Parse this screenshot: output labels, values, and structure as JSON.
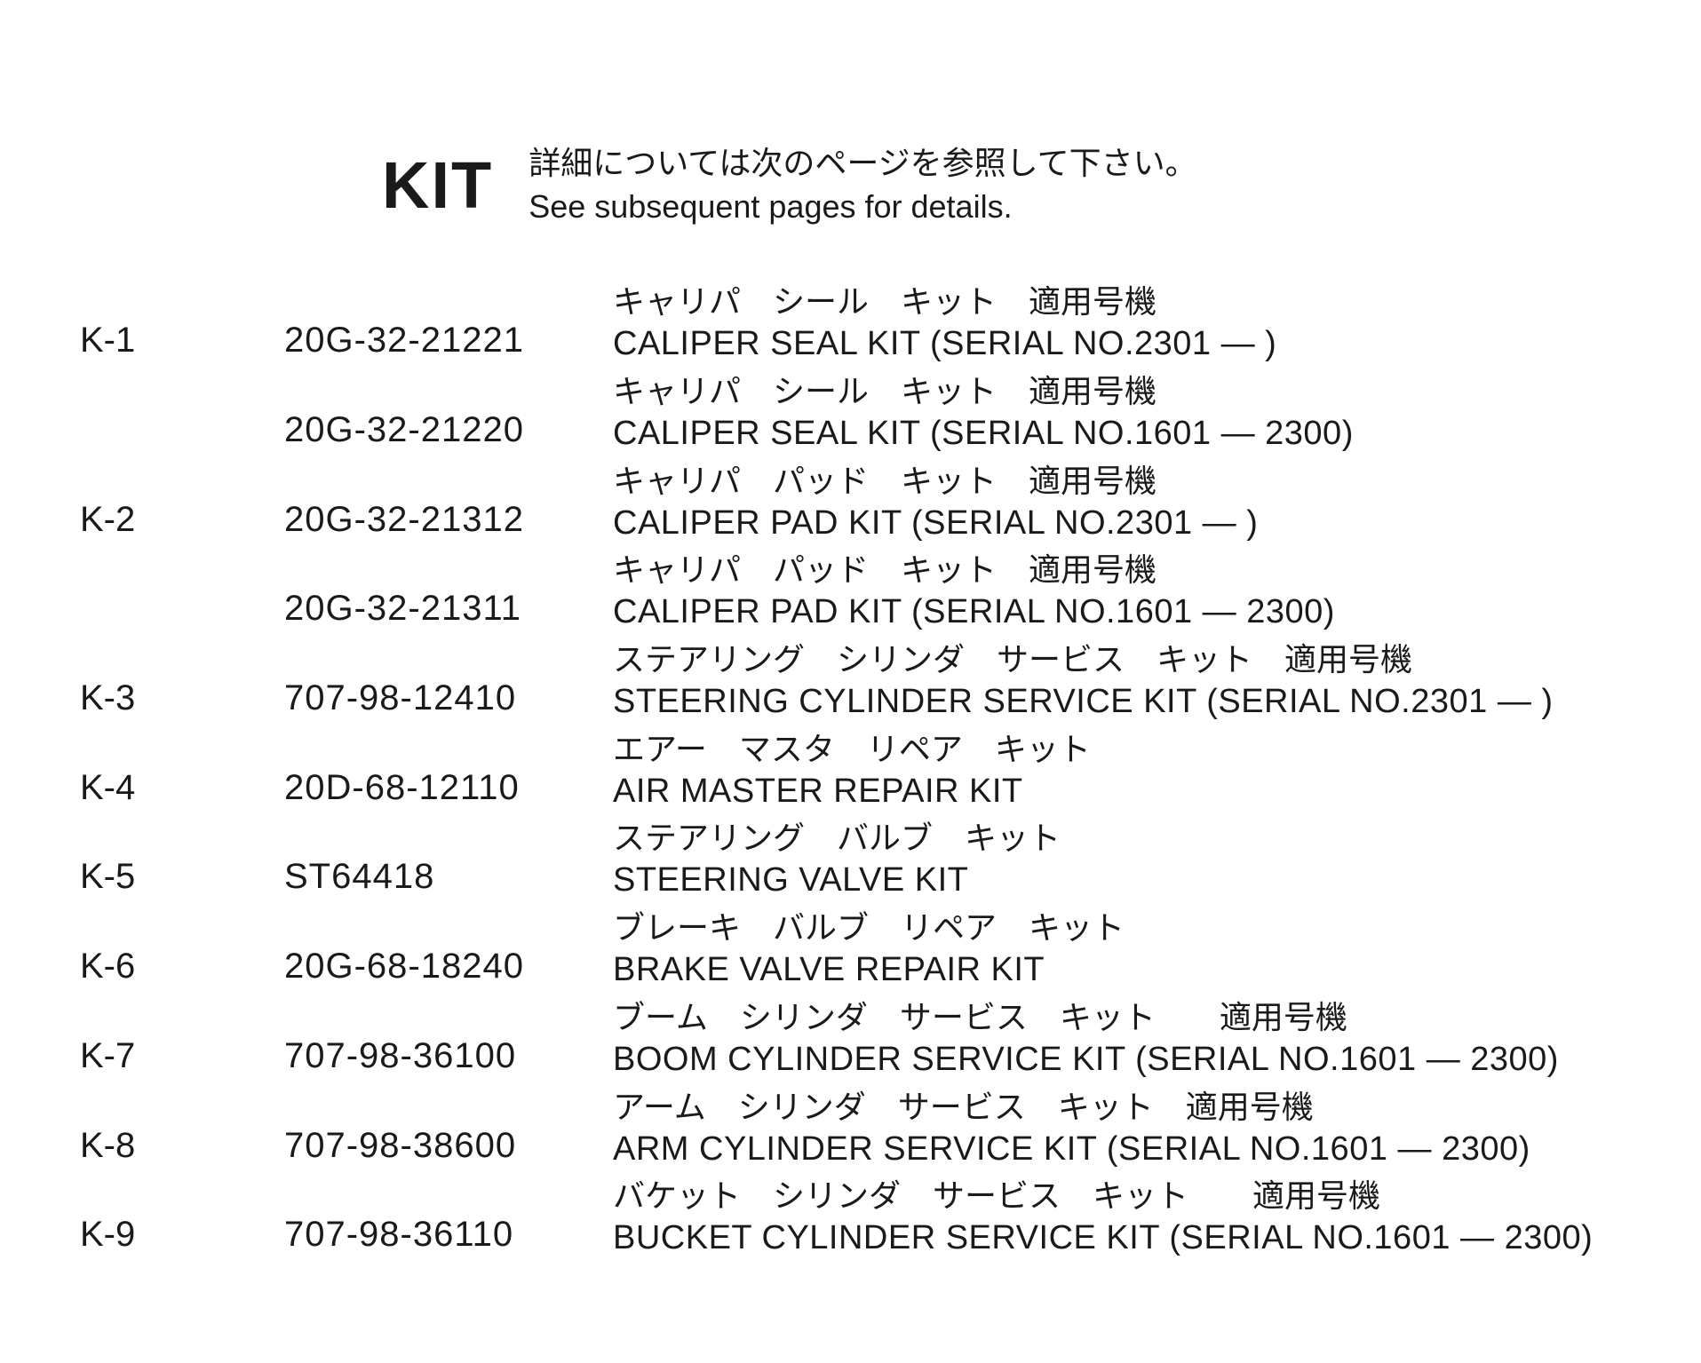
{
  "header": {
    "title": "KIT",
    "sub_jp": "詳細については次のページを参照して下さい。",
    "sub_en": "See subsequent pages for details."
  },
  "rows": [
    {
      "ref": "K-1",
      "part": "20G-32-21221",
      "jp": "キャリパ　シール　キット　適用号機",
      "en": "CALIPER SEAL KIT (SERIAL NO.2301 — )"
    },
    {
      "ref": "",
      "part": "20G-32-21220",
      "jp": "キャリパ　シール　キット　適用号機",
      "en": "CALIPER SEAL KIT (SERIAL NO.1601 — 2300)"
    },
    {
      "ref": "K-2",
      "part": "20G-32-21312",
      "jp": "キャリパ　パッド　キット　適用号機",
      "en": "CALIPER PAD KIT (SERIAL NO.2301 — )"
    },
    {
      "ref": "",
      "part": "20G-32-21311",
      "jp": "キャリパ　パッド　キット　適用号機",
      "en": "CALIPER PAD KIT (SERIAL NO.1601 — 2300)"
    },
    {
      "ref": "K-3",
      "part": "707-98-12410",
      "jp": "ステアリング　シリンダ　サービス　キット　適用号機",
      "en": "STEERING CYLINDER SERVICE KIT (SERIAL NO.2301 — )"
    },
    {
      "ref": "K-4",
      "part": "20D-68-12110",
      "jp": "エアー　マスタ　リペア　キット",
      "en": "AIR MASTER REPAIR KIT"
    },
    {
      "ref": "K-5",
      "part": "ST64418",
      "jp": "ステアリング　バルブ　キット",
      "en": "STEERING VALVE KIT"
    },
    {
      "ref": "K-6",
      "part": "20G-68-18240",
      "jp": "ブレーキ　バルブ　リペア　キット",
      "en": "BRAKE VALVE REPAIR KIT"
    },
    {
      "ref": "K-7",
      "part": "707-98-36100",
      "jp": "ブーム　シリンダ　サービス　キット　　適用号機",
      "en": "BOOM CYLINDER SERVICE KIT (SERIAL NO.1601 — 2300)"
    },
    {
      "ref": "K-8",
      "part": "707-98-38600",
      "jp": "アーム　シリンダ　サービス　キット　適用号機",
      "en": "ARM CYLINDER SERVICE KIT (SERIAL NO.1601 — 2300)"
    },
    {
      "ref": "K-9",
      "part": "707-98-36110",
      "jp": "バケット　シリンダ　サービス　キット　　適用号機",
      "en": "BUCKET CYLINDER SERVICE KIT (SERIAL NO.1601 — 2300)"
    }
  ],
  "style": {
    "background_color": "#ffffff",
    "text_color": "#1a1a1a",
    "title_fontsize": 74,
    "body_fontsize": 38,
    "jp_fontsize": 36
  }
}
